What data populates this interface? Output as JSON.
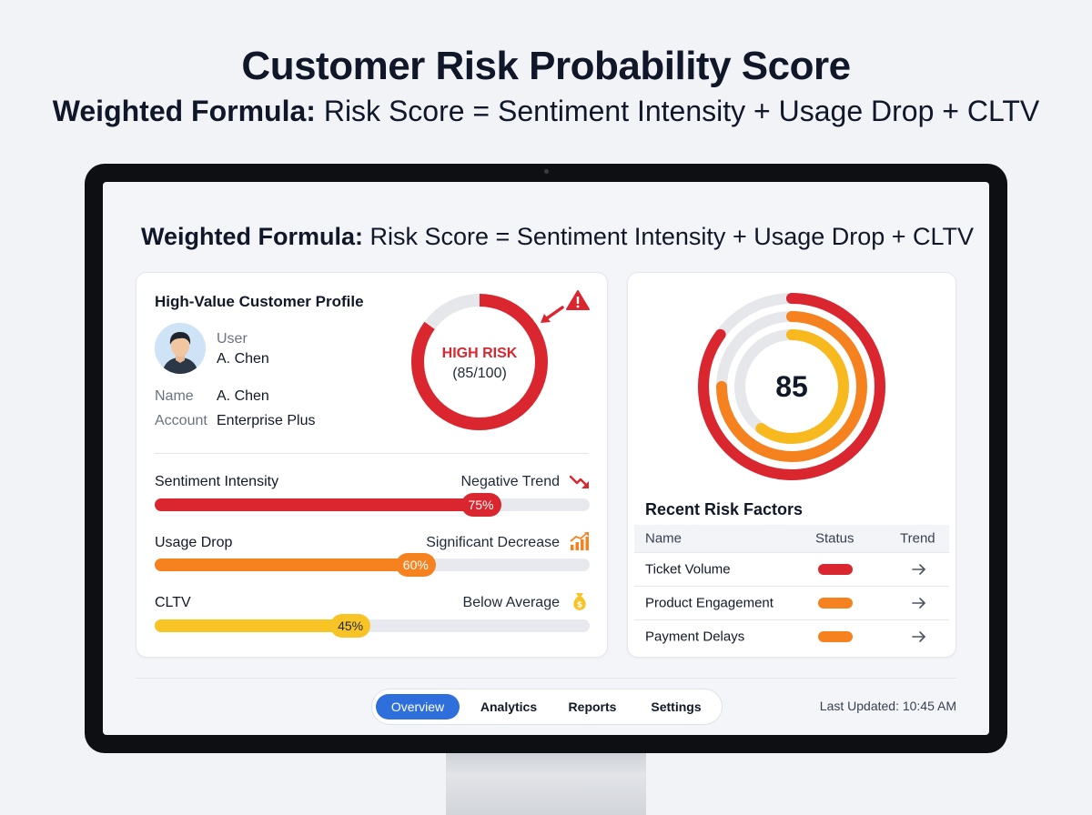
{
  "header": {
    "title": "Customer Risk Probability Score",
    "formula_bold": "Weighted Formula:",
    "formula_text": " Risk Score = Sentiment Intensity + Usage Drop + CLTV"
  },
  "screen": {
    "formula_bold": "Weighted Formula:",
    "formula_text": " Risk Score = Sentiment Intensity + Usage Drop + CLTV"
  },
  "profile": {
    "title": "High-Value Customer Profile",
    "user_label": "User",
    "user_value": "A. Chen",
    "name_label": "Name",
    "name_value": "A. Chen",
    "account_label": "Account",
    "account_value": "Enterprise Plus"
  },
  "risk_donut": {
    "label": "HIGH RISK",
    "score_text": "(85/100)",
    "score": 85,
    "max": 100,
    "color": "#d9262f"
  },
  "metrics": [
    {
      "label": "Sentiment Intensity",
      "trend": "Negative Trend",
      "value": 75,
      "value_text": "75%",
      "color": "#d9262f",
      "icon": "trend-down-icon"
    },
    {
      "label": "Usage Drop",
      "trend": "Significant Decrease",
      "value": 60,
      "value_text": "60%",
      "color": "#f5821f",
      "icon": "bar-chart-icon"
    },
    {
      "label": "CLTV",
      "trend": "Below Average",
      "value": 45,
      "value_text": "45%",
      "color": "#f7c325",
      "icon": "money-bag-icon"
    }
  ],
  "gauge": {
    "value": "85",
    "rings": [
      {
        "value": 85,
        "color": "#d9262f"
      },
      {
        "value": 75,
        "color": "#f5821f"
      },
      {
        "value": 60,
        "color": "#f7b91e"
      }
    ]
  },
  "risk_factors": {
    "title": "Recent Risk Factors",
    "columns": [
      "Name",
      "Status",
      "Trend"
    ],
    "rows": [
      {
        "name": "Ticket Volume",
        "status_color": "#d9262f"
      },
      {
        "name": "Product Engagement",
        "status_color": "#f5821f"
      },
      {
        "name": "Payment Delays",
        "status_color": "#f5821f"
      }
    ]
  },
  "nav": {
    "items": [
      "Overview",
      "Analytics",
      "Reports",
      "Settings"
    ],
    "active": "Overview"
  },
  "footer": {
    "last_updated": "Last Updated: 10:45 AM"
  }
}
